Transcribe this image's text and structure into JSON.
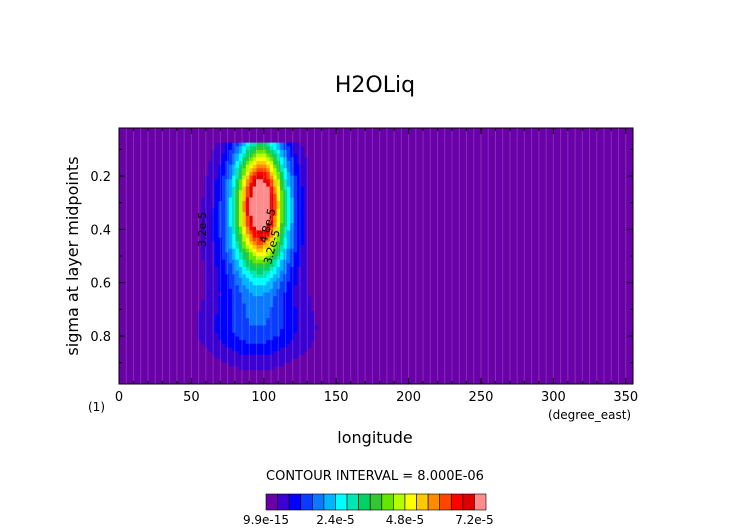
{
  "chart_data": {
    "type": "heatmap",
    "title": "H2OLiq",
    "xlabel": "longitude",
    "xunits": "(degree_east)",
    "ylabel": "sigma at layer midpoints",
    "corner_label": "(1)",
    "contour_interval_text": "CONTOUR INTERVAL = 8.000E-06",
    "xlim": [
      0,
      355
    ],
    "ylim": [
      0.02,
      0.98
    ],
    "y_inverted": true,
    "xticks": [
      0,
      50,
      100,
      150,
      200,
      250,
      300,
      350
    ],
    "yticks": [
      0.2,
      0.4,
      0.6,
      0.8
    ],
    "xtick_labels": [
      "0",
      "50",
      "100",
      "150",
      "200",
      "250",
      "300",
      "350"
    ],
    "ytick_labels": [
      "0.2",
      "0.4",
      "0.6",
      "0.8"
    ],
    "contour_labels": [
      "3.2e-5",
      "3.2e-5",
      "4.8e-5"
    ],
    "colorbar": {
      "levels": [
        "9.9e-15",
        "2.4e-5",
        "4.8e-5",
        "7.2e-5"
      ],
      "colors": [
        "#6a00a8",
        "#3c00d0",
        "#0000ff",
        "#0a3cff",
        "#0a78ff",
        "#00b4ff",
        "#00ffff",
        "#00e6b4",
        "#00d264",
        "#32c832",
        "#64e600",
        "#b4ff00",
        "#ffff00",
        "#ffc800",
        "#ff8c00",
        "#ff4600",
        "#ff0000",
        "#dc0000",
        "#ff8c8c"
      ]
    },
    "field": {
      "background_value": 0,
      "peak_location": {
        "lon": 98,
        "sigma": 0.22
      },
      "peak_value": 8e-05,
      "plume_lon_range": [
        55,
        130
      ],
      "base_lon_range": [
        40,
        150
      ],
      "sigma_top": 0.07,
      "sigma_bottom": 0.9
    }
  }
}
